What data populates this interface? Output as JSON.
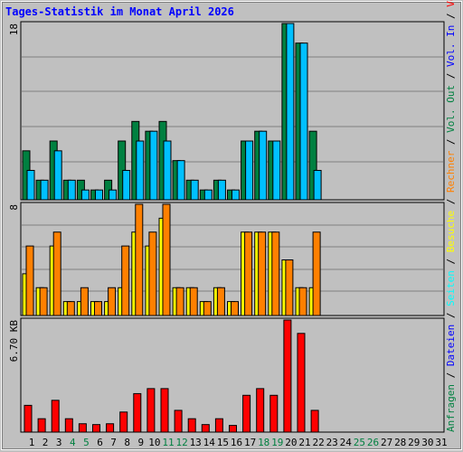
{
  "title": "Tages-Statistik im Monat April 2026",
  "colors": {
    "background": "#c0c0c0",
    "title": "#0000ff",
    "gridline": "#808080",
    "anfragen": "#008040",
    "dateien": "#00c0ff",
    "seiten": "#00ffff",
    "besuche": "#ffff00",
    "rechner": "#ff8000",
    "volumen": "#ff0000",
    "weekday_label": "#000000",
    "weekend_label": "#008040"
  },
  "right_legend": [
    {
      "text": "Anfragen",
      "color": "#008040"
    },
    {
      "text": " / ",
      "color": "#000000"
    },
    {
      "text": "Dateien",
      "color": "#0000ff"
    },
    {
      "text": " / ",
      "color": "#000000"
    },
    {
      "text": "Seiten",
      "color": "#00ffff"
    },
    {
      "text": " / ",
      "color": "#000000"
    },
    {
      "text": "Besuche",
      "color": "#ffff00"
    },
    {
      "text": " / ",
      "color": "#000000"
    },
    {
      "text": "Rechner",
      "color": "#ff8000"
    },
    {
      "text": " / ",
      "color": "#000000"
    },
    {
      "text": "Vol. Out",
      "color": "#008040"
    },
    {
      "text": " / ",
      "color": "#000000"
    },
    {
      "text": "Vol. In",
      "color": "#0000ff"
    },
    {
      "text": " / ",
      "color": "#000000"
    },
    {
      "text": "Volumen",
      "color": "#ff0000"
    }
  ],
  "chart_data": {
    "type": "bar",
    "title": "Tages-Statistik im Monat April 2026",
    "categories": [
      "1",
      "2",
      "3",
      "4",
      "5",
      "6",
      "7",
      "8",
      "9",
      "10",
      "11",
      "12",
      "13",
      "14",
      "15",
      "16",
      "17",
      "18",
      "19",
      "20",
      "21",
      "22",
      "23",
      "24",
      "25",
      "26",
      "27",
      "28",
      "29",
      "30",
      "31"
    ],
    "weekend_days": [
      "4",
      "5",
      "11",
      "12",
      "18",
      "19",
      "25",
      "26"
    ],
    "panels": [
      {
        "name": "requests",
        "y_label": "18",
        "ylim": [
          0,
          18
        ],
        "series": [
          {
            "name": "Anfragen",
            "values": [
              5,
              2,
              6,
              2,
              2,
              1,
              2,
              6,
              8,
              7,
              8,
              4,
              2,
              1,
              2,
              1,
              6,
              7,
              6,
              18,
              16,
              7,
              0,
              0,
              0,
              0,
              0,
              0,
              0,
              0,
              0
            ]
          },
          {
            "name": "Dateien",
            "values": [
              3,
              2,
              5,
              2,
              1,
              1,
              1,
              3,
              6,
              7,
              6,
              4,
              2,
              1,
              2,
              1,
              6,
              7,
              6,
              18,
              16,
              3,
              0,
              0,
              0,
              0,
              0,
              0,
              0,
              0,
              0
            ]
          },
          {
            "name": "Seiten",
            "values": [
              0,
              0,
              0,
              0,
              0,
              0,
              0,
              0,
              0,
              0,
              0,
              0,
              0,
              0,
              0,
              0,
              0,
              0,
              0,
              0,
              0,
              0,
              0,
              0,
              0,
              0,
              0,
              0,
              0,
              0,
              0
            ]
          }
        ]
      },
      {
        "name": "visits",
        "y_label": "8",
        "ylim": [
          0,
          8
        ],
        "series": [
          {
            "name": "Besuche",
            "values": [
              3,
              2,
              5,
              1,
              1,
              1,
              1,
              2,
              6,
              5,
              7,
              2,
              2,
              1,
              2,
              1,
              6,
              6,
              6,
              4,
              2,
              2,
              0,
              0,
              0,
              0,
              0,
              0,
              0,
              0,
              0
            ]
          },
          {
            "name": "Rechner",
            "values": [
              5,
              2,
              6,
              1,
              2,
              1,
              2,
              5,
              8,
              6,
              8,
              2,
              2,
              1,
              2,
              1,
              6,
              6,
              6,
              4,
              2,
              6,
              0,
              0,
              0,
              0,
              0,
              0,
              0,
              0,
              0
            ]
          }
        ]
      },
      {
        "name": "volume",
        "y_label": "6.70 KB",
        "ylim": [
          0,
          6.7
        ],
        "series": [
          {
            "name": "Volumen",
            "values": [
              1.6,
              0.8,
              1.9,
              0.8,
              0.5,
              0.45,
              0.5,
              1.2,
              2.3,
              2.6,
              2.6,
              1.3,
              0.8,
              0.45,
              0.8,
              0.4,
              2.2,
              2.6,
              2.2,
              6.7,
              5.9,
              1.3,
              0,
              0,
              0,
              0,
              0,
              0,
              0,
              0,
              0
            ]
          }
        ]
      }
    ]
  }
}
